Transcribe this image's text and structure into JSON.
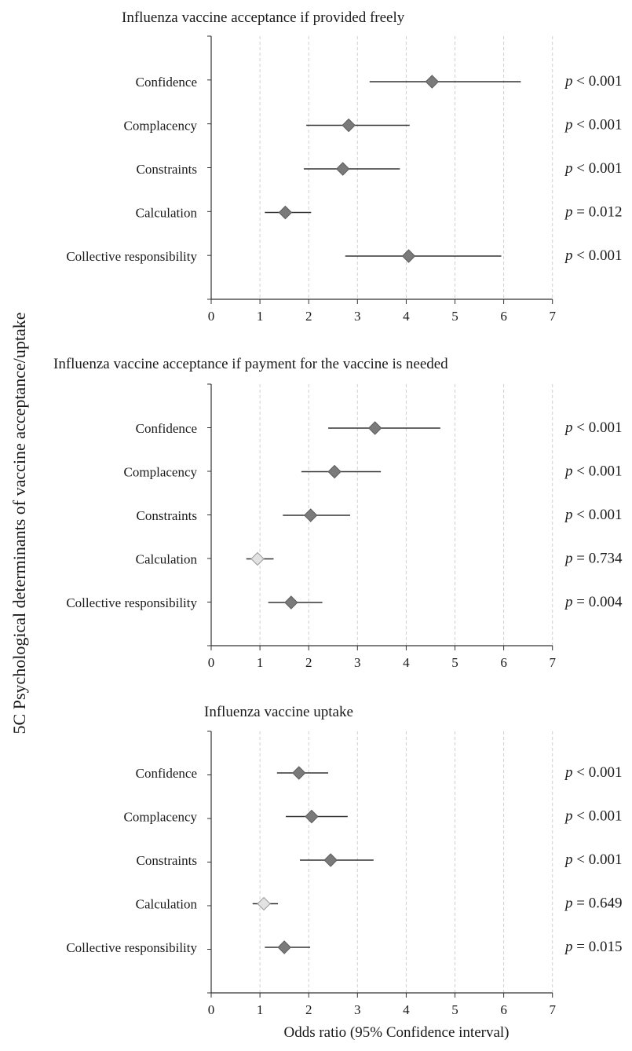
{
  "chart_data": {
    "type": "forest",
    "ylabel": "5C Psychological determinants of vaccine acceptance/uptake",
    "xlabel": "Odds ratio (95% Confidence interval)",
    "xlim": [
      0,
      7
    ],
    "xticks": [
      "0",
      "1",
      "2",
      "3",
      "4",
      "5",
      "6",
      "7"
    ],
    "grid": "vertical dashed",
    "colors": {
      "significant": "#7a7a7a",
      "nonsignificant": "#e2e2e2",
      "line": "#333333",
      "grid": "#d0d0d0"
    },
    "panels": [
      {
        "title": "Influenza vaccine acceptance if provided freely",
        "rows": [
          {
            "label": "Confidence",
            "or": 4.53,
            "lo": 3.25,
            "hi": 6.35,
            "significant": true,
            "p_var": "p",
            "p_text": " < 0.001"
          },
          {
            "label": "Complacency",
            "or": 2.82,
            "lo": 1.95,
            "hi": 4.07,
            "significant": true,
            "p_var": "p",
            "p_text": " < 0.001"
          },
          {
            "label": "Constraints",
            "or": 2.7,
            "lo": 1.9,
            "hi": 3.87,
            "significant": true,
            "p_var": "p",
            "p_text": " < 0.001"
          },
          {
            "label": "Calculation",
            "or": 1.52,
            "lo": 1.1,
            "hi": 2.05,
            "significant": true,
            "p_var": "p",
            "p_text": " = 0.012"
          },
          {
            "label": "Collective responsibility",
            "or": 4.05,
            "lo": 2.75,
            "hi": 5.95,
            "significant": true,
            "p_var": "p",
            "p_text": " < 0.001"
          }
        ]
      },
      {
        "title": "Influenza vaccine acceptance if payment for the vaccine is needed",
        "rows": [
          {
            "label": "Confidence",
            "or": 3.36,
            "lo": 2.4,
            "hi": 4.7,
            "significant": true,
            "p_var": "p",
            "p_text": " < 0.001"
          },
          {
            "label": "Complacency",
            "or": 2.53,
            "lo": 1.85,
            "hi": 3.48,
            "significant": true,
            "p_var": "p",
            "p_text": " < 0.001"
          },
          {
            "label": "Constraints",
            "or": 2.04,
            "lo": 1.47,
            "hi": 2.85,
            "significant": true,
            "p_var": "p",
            "p_text": " < 0.001"
          },
          {
            "label": "Calculation",
            "or": 0.95,
            "lo": 0.72,
            "hi": 1.28,
            "significant": false,
            "p_var": "p",
            "p_text": " = 0.734"
          },
          {
            "label": "Collective responsibility",
            "or": 1.64,
            "lo": 1.17,
            "hi": 2.28,
            "significant": true,
            "p_var": "p",
            "p_text": " = 0.004"
          }
        ]
      },
      {
        "title": "Influenza vaccine uptake",
        "rows": [
          {
            "label": "Confidence",
            "or": 1.8,
            "lo": 1.35,
            "hi": 2.4,
            "significant": true,
            "p_var": "p",
            "p_text": " < 0.001"
          },
          {
            "label": "Complacency",
            "or": 2.06,
            "lo": 1.53,
            "hi": 2.8,
            "significant": true,
            "p_var": "p",
            "p_text": " < 0.001"
          },
          {
            "label": "Constraints",
            "or": 2.45,
            "lo": 1.82,
            "hi": 3.33,
            "significant": true,
            "p_var": "p",
            "p_text": " < 0.001"
          },
          {
            "label": "Calculation",
            "or": 1.08,
            "lo": 0.85,
            "hi": 1.37,
            "significant": false,
            "p_var": "p",
            "p_text": " = 0.649"
          },
          {
            "label": "Collective responsibility",
            "or": 1.5,
            "lo": 1.1,
            "hi": 2.03,
            "significant": true,
            "p_var": "p",
            "p_text": " = 0.015"
          }
        ]
      }
    ]
  }
}
